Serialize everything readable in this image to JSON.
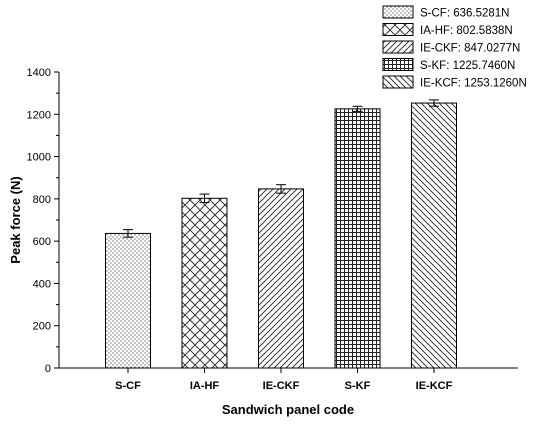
{
  "chart_data": {
    "type": "bar",
    "title": "",
    "xlabel": "Sandwich panel code",
    "ylabel": "Peak force (N)",
    "categories": [
      "S-CF",
      "IA-HF",
      "IE-CKF",
      "S-KF",
      "IE-KCF"
    ],
    "values": [
      636.5281,
      802.5838,
      847.0277,
      1225.746,
      1253.126
    ],
    "errors": [
      18,
      20,
      20,
      12,
      15
    ],
    "patterns": [
      "dots",
      "crosshatch",
      "diag-forward",
      "grid",
      "diag-back"
    ],
    "ylim": [
      0,
      1400
    ],
    "yticks": [
      0,
      200,
      400,
      600,
      800,
      1000,
      1200,
      1400
    ],
    "grid": false,
    "legend_position": "top-right",
    "legend": [
      "S-CF: 636.5281N",
      "IA-HF: 802.5838N",
      "IE-CKF: 847.0277N",
      "S-KF: 1225.7460N",
      "IE-KCF: 1253.1260N"
    ]
  }
}
